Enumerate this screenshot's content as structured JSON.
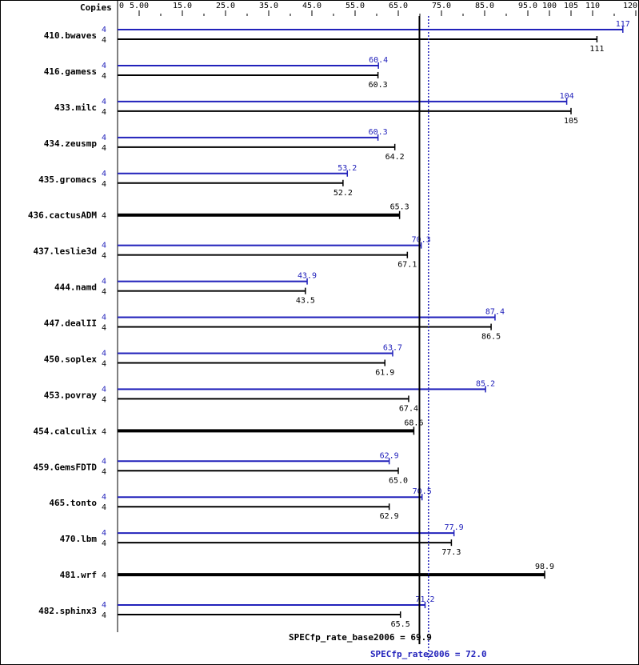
{
  "chart_data": {
    "type": "bar",
    "orientation": "horizontal",
    "copies_header": "Copies",
    "xlim": [
      0,
      120
    ],
    "tick_labels": [
      "0",
      "5.00",
      "15.0",
      "25.0",
      "35.0",
      "45.0",
      "55.0",
      "65.0",
      "75.0",
      "85.0",
      "95.0",
      "100",
      "105",
      "110",
      "120"
    ],
    "tick_values": [
      0,
      5,
      15,
      25,
      35,
      45,
      55,
      65,
      75,
      85,
      95,
      100,
      105,
      110,
      120
    ],
    "colors": {
      "peak": "#2222bb",
      "base": "#000000"
    },
    "benchmarks": [
      {
        "name": "410.bwaves",
        "peak_copies": "4",
        "peak": 117,
        "peak_label": "117",
        "base_copies": "4",
        "base": 111,
        "base_label": "111"
      },
      {
        "name": "416.gamess",
        "peak_copies": "4",
        "peak": 60.4,
        "peak_label": "60.4",
        "base_copies": "4",
        "base": 60.3,
        "base_label": "60.3"
      },
      {
        "name": "433.milc",
        "peak_copies": "4",
        "peak": 104,
        "peak_label": "104",
        "base_copies": "4",
        "base": 105,
        "base_label": "105"
      },
      {
        "name": "434.zeusmp",
        "peak_copies": "4",
        "peak": 60.3,
        "peak_label": "60.3",
        "base_copies": "4",
        "base": 64.2,
        "base_label": "64.2"
      },
      {
        "name": "435.gromacs",
        "peak_copies": "4",
        "peak": 53.2,
        "peak_label": "53.2",
        "base_copies": "4",
        "base": 52.2,
        "base_label": "52.2"
      },
      {
        "name": "436.cactusADM",
        "base_copies": "4",
        "base": 65.3,
        "base_label": "65.3"
      },
      {
        "name": "437.leslie3d",
        "peak_copies": "4",
        "peak": 70.3,
        "peak_label": "70.3",
        "base_copies": "4",
        "base": 67.1,
        "base_label": "67.1"
      },
      {
        "name": "444.namd",
        "peak_copies": "4",
        "peak": 43.9,
        "peak_label": "43.9",
        "base_copies": "4",
        "base": 43.5,
        "base_label": "43.5"
      },
      {
        "name": "447.dealII",
        "peak_copies": "4",
        "peak": 87.4,
        "peak_label": "87.4",
        "base_copies": "4",
        "base": 86.5,
        "base_label": "86.5"
      },
      {
        "name": "450.soplex",
        "peak_copies": "4",
        "peak": 63.7,
        "peak_label": "63.7",
        "base_copies": "4",
        "base": 61.9,
        "base_label": "61.9"
      },
      {
        "name": "453.povray",
        "peak_copies": "4",
        "peak": 85.2,
        "peak_label": "85.2",
        "base_copies": "4",
        "base": 67.4,
        "base_label": "67.4"
      },
      {
        "name": "454.calculix",
        "base_copies": "4",
        "base": 68.6,
        "base_label": "68.6"
      },
      {
        "name": "459.GemsFDTD",
        "peak_copies": "4",
        "peak": 62.9,
        "peak_label": "62.9",
        "base_copies": "4",
        "base": 65.0,
        "base_label": "65.0"
      },
      {
        "name": "465.tonto",
        "peak_copies": "4",
        "peak": 70.5,
        "peak_label": "70.5",
        "base_copies": "4",
        "base": 62.9,
        "base_label": "62.9"
      },
      {
        "name": "470.lbm",
        "peak_copies": "4",
        "peak": 77.9,
        "peak_label": "77.9",
        "base_copies": "4",
        "base": 77.3,
        "base_label": "77.3"
      },
      {
        "name": "481.wrf",
        "base_copies": "4",
        "base": 98.9,
        "base_label": "98.9"
      },
      {
        "name": "482.sphinx3",
        "peak_copies": "4",
        "peak": 71.2,
        "peak_label": "71.2",
        "base_copies": "4",
        "base": 65.5,
        "base_label": "65.5"
      }
    ],
    "reference_lines": {
      "base": {
        "value": 69.9,
        "label": "SPECfp_rate_base2006 = 69.9"
      },
      "peak": {
        "value": 72.0,
        "label": "SPECfp_rate2006 = 72.0"
      }
    }
  }
}
